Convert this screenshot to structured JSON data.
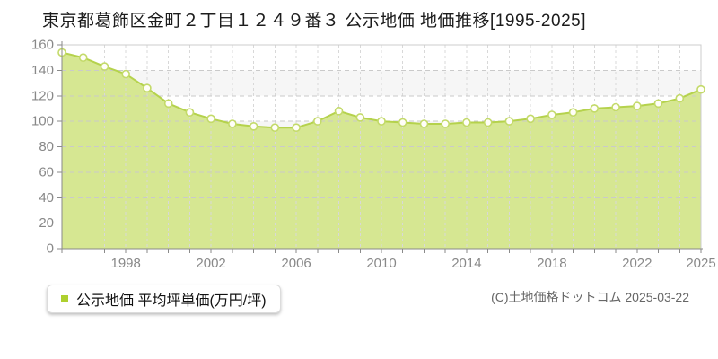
{
  "title": "東京都葛飾区金町２丁目１２４９番３ 公示地価 地価推移[1995-2025]",
  "legend": {
    "label": "公示地価 平均坪単価(万円/坪)",
    "swatch_color": "#aed02f"
  },
  "footer": {
    "credit": "(C)土地価格ドットコム 2025-03-22"
  },
  "colors": {
    "area_fill": "#d6e792",
    "line": "#b5d24c",
    "marker_fill": "#fffef8",
    "marker_stroke": "#c3da69",
    "grid_h": "#cacaca",
    "grid_v": "#d8d8d8",
    "band_alt": "#f6f6f6",
    "plot_border": "#cccccc",
    "axis": "#8a8a8a",
    "tick_label": "#888888"
  },
  "chart_data": {
    "type": "area",
    "title": "東京都葛飾区金町２丁目１２４９番３ 公示地価 地価推移[1995-2025]",
    "x": [
      1995,
      1996,
      1997,
      1998,
      1999,
      2000,
      2001,
      2002,
      2003,
      2004,
      2005,
      2006,
      2007,
      2008,
      2009,
      2010,
      2011,
      2012,
      2013,
      2014,
      2015,
      2016,
      2017,
      2018,
      2019,
      2020,
      2021,
      2022,
      2023,
      2024,
      2025
    ],
    "series": [
      {
        "name": "公示地価 平均坪単価(万円/坪)",
        "values": [
          154,
          150,
          143,
          137,
          126,
          114,
          107,
          102,
          98,
          96,
          95,
          95,
          100,
          108,
          103,
          100,
          99,
          98,
          98,
          99,
          99,
          100,
          102,
          105,
          107,
          110,
          111,
          112,
          114,
          118,
          125
        ]
      }
    ],
    "xlabel": "",
    "ylabel": "万円/坪",
    "ylim": [
      0,
      160
    ],
    "ytick_step": 20,
    "xtick_labels": [
      "1998",
      "2002",
      "2006",
      "2010",
      "2014",
      "2018",
      "2022",
      "2025"
    ],
    "grid": true,
    "legend_position": "bottom-left"
  }
}
